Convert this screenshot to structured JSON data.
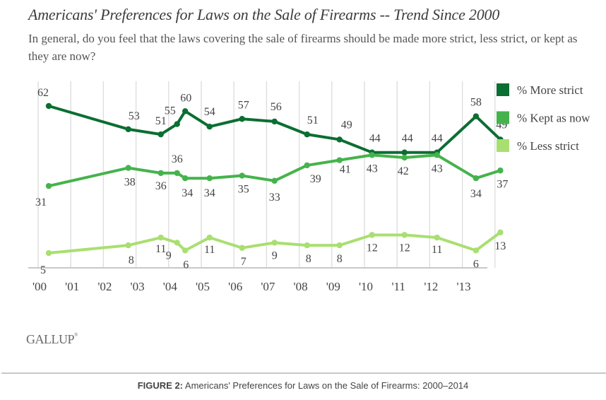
{
  "header": {
    "title": "Americans' Preferences for Laws on the Sale of Firearms -- Trend Since 2000",
    "subtitle": "In general, do you feel that the laws covering the sale of firearms should be made more strict, less strict, or kept as they are now?"
  },
  "footer": {
    "source_logo": "GALLUP",
    "caption_prefix": "FIGURE 2:",
    "caption_text": " Americans' Preferences for Laws on the Sale of Firearms: 2000–2014"
  },
  "chart_data": {
    "type": "line",
    "title": "Americans' Preferences for Laws on the Sale of Firearms -- Trend Since 2000",
    "xlabel": "",
    "ylabel": "",
    "x_tick_labels": [
      "'00",
      "'01",
      "'02",
      "'03",
      "'04",
      "'05",
      "'06",
      "'07",
      "'08",
      "'09",
      "'10",
      "'11",
      "'12",
      "'13"
    ],
    "x_range": [
      2000,
      2014
    ],
    "ylim": [
      0,
      65
    ],
    "grid": "vertical",
    "legend_position": "right",
    "x": [
      2000.0,
      2002.45,
      2003.45,
      2003.95,
      2004.2,
      2004.95,
      2005.95,
      2006.95,
      2007.95,
      2008.95,
      2009.95,
      2010.95,
      2011.95,
      2013.15,
      2013.9
    ],
    "series": [
      {
        "name": "% More strict",
        "color": "#0b6e32",
        "values": [
          62,
          53,
          51,
          55,
          60,
          54,
          57,
          56,
          51,
          49,
          44,
          44,
          44,
          58,
          49
        ]
      },
      {
        "name": "% Kept as now",
        "color": "#45b34c",
        "values": [
          31,
          38,
          36,
          36,
          34,
          34,
          35,
          33,
          39,
          41,
          43,
          42,
          43,
          34,
          37
        ]
      },
      {
        "name": "% Less strict",
        "color": "#a9df70",
        "values": [
          5,
          8,
          11,
          9,
          6,
          11,
          7,
          9,
          8,
          8,
          12,
          12,
          11,
          6,
          13
        ]
      }
    ]
  }
}
